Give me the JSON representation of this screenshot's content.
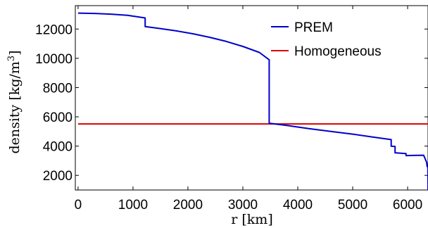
{
  "chart_data": {
    "type": "line",
    "xlabel": "r  [km]",
    "ylabel": "density  [kg/m",
    "ylabel_superscript": "3",
    "ylabel_close": "]",
    "xlim": [
      -50,
      6371
    ],
    "ylim": [
      1000,
      13600
    ],
    "xticks": [
      0,
      1000,
      2000,
      3000,
      4000,
      5000,
      6000
    ],
    "yticks": [
      2000,
      4000,
      6000,
      8000,
      10000,
      12000
    ],
    "grid": false,
    "legend": {
      "position": "top-right"
    },
    "series": [
      {
        "name": "PREM",
        "color": "#0000cc",
        "points": [
          [
            0,
            13088
          ],
          [
            300,
            13068
          ],
          [
            600,
            13020
          ],
          [
            900,
            12940
          ],
          [
            1221,
            12760
          ],
          [
            1221,
            12166
          ],
          [
            1500,
            12030
          ],
          [
            1800,
            11870
          ],
          [
            2100,
            11670
          ],
          [
            2400,
            11430
          ],
          [
            2700,
            11150
          ],
          [
            3000,
            10810
          ],
          [
            3300,
            10400
          ],
          [
            3480,
            9903
          ],
          [
            3480,
            5566
          ],
          [
            3800,
            5410
          ],
          [
            4200,
            5200
          ],
          [
            4600,
            5000
          ],
          [
            5000,
            4820
          ],
          [
            5400,
            4600
          ],
          [
            5701,
            4443
          ],
          [
            5701,
            3992
          ],
          [
            5771,
            3975
          ],
          [
            5771,
            3543
          ],
          [
            5971,
            3490
          ],
          [
            5971,
            3350
          ],
          [
            6151,
            3370
          ],
          [
            6291,
            3375
          ],
          [
            6346,
            2900
          ],
          [
            6356,
            2600
          ],
          [
            6368,
            2600
          ],
          [
            6371,
            1020
          ]
        ]
      },
      {
        "name": "Homogeneous",
        "color": "#dd0000",
        "points": [
          [
            0,
            5514
          ],
          [
            6371,
            5514
          ]
        ]
      }
    ]
  }
}
